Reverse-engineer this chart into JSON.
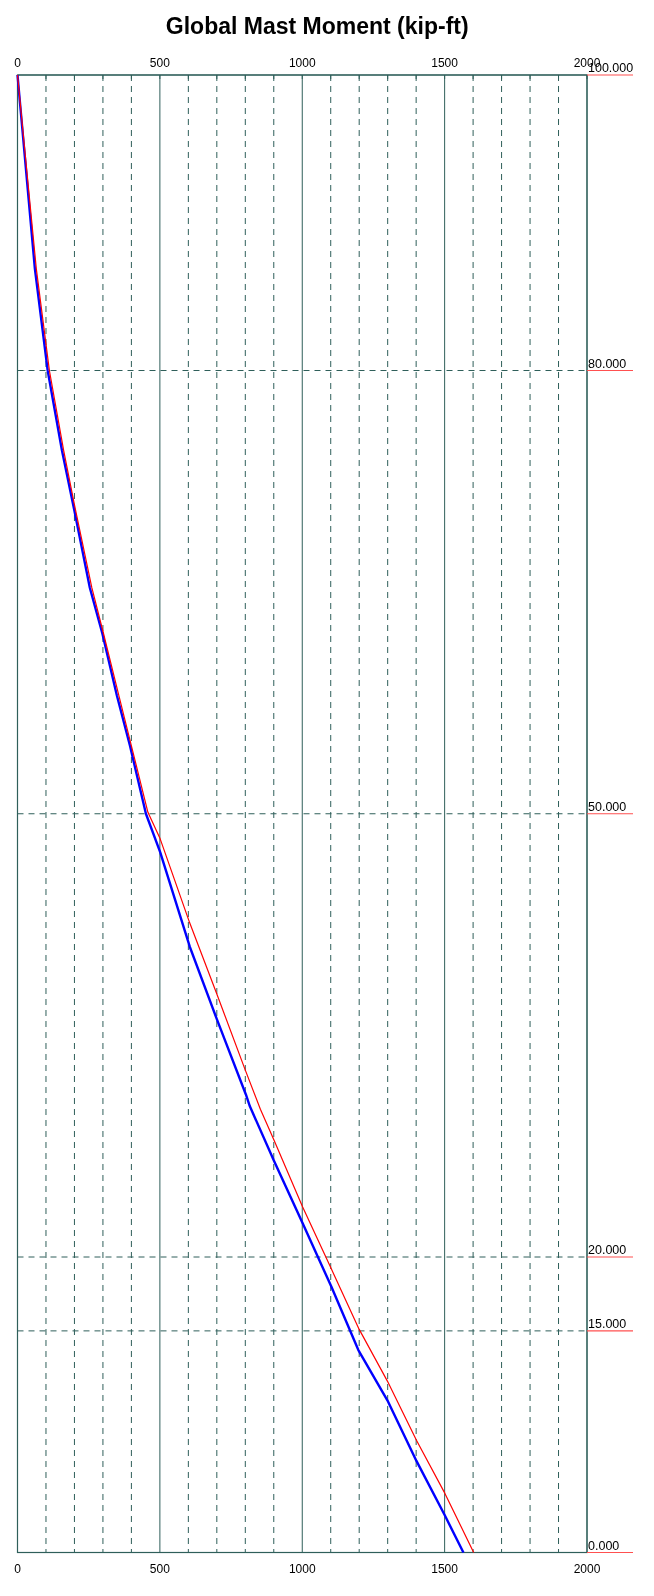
{
  "chart_data": {
    "type": "line",
    "title": "Global Mast Moment (kip-ft)",
    "series": [
      {
        "color": "#ff0000",
        "x": [
          0,
          66,
          112,
          162,
          199,
          261,
          302,
          356,
          400,
          458,
          501,
          605,
          700,
          799,
          853,
          901,
          1001,
          1102,
          1200,
          1299,
          1401,
          1501,
          1602
        ],
        "values": [
          100,
          86.9,
          80,
          74.6,
          71.0,
          65.3,
          62.2,
          58.0,
          54.6,
          50.1,
          48.3,
          42.6,
          37.8,
          32.7,
          30.0,
          27.9,
          23.4,
          19.2,
          15.1,
          11.6,
          7.6,
          4.0,
          0
        ]
      },
      {
        "color": "#0000ff",
        "x": [
          0,
          61,
          106,
          156,
          199,
          254,
          298,
          349,
          395,
          451,
          501,
          605,
          700,
          802,
          816,
          901,
          1001,
          1102,
          1197,
          1299,
          1401,
          1501,
          1566
        ],
        "values": [
          100,
          86.9,
          80,
          74.6,
          70.6,
          65.3,
          62.2,
          58.0,
          54.6,
          50.0,
          47.4,
          41.0,
          36.1,
          31.0,
          30.2,
          26.5,
          22.3,
          18.0,
          13.7,
          10.3,
          6.2,
          2.5,
          0
        ]
      }
    ],
    "xlim": [
      0,
      2000
    ],
    "xticks": [
      0,
      {
        "value": 100,
        "label": null
      },
      {
        "value": 200,
        "label": null
      },
      {
        "value": 300,
        "label": null
      },
      {
        "value": 400,
        "label": null
      },
      500,
      {
        "value": 600,
        "label": null
      },
      {
        "value": 700,
        "label": null
      },
      {
        "value": 800,
        "label": null
      },
      {
        "value": 900,
        "label": null
      },
      1000,
      {
        "value": 1100,
        "label": null
      },
      {
        "value": 1200,
        "label": null
      },
      {
        "value": 1300,
        "label": null
      },
      {
        "value": 1400,
        "label": null
      },
      1500,
      {
        "value": 1600,
        "label": null
      },
      {
        "value": 1700,
        "label": null
      },
      {
        "value": 1800,
        "label": null
      },
      {
        "value": 1900,
        "label": null
      },
      2000
    ],
    "x2lim": [
      0,
      2000
    ],
    "x2ticks": [
      0,
      {
        "value": 100,
        "label": null
      },
      {
        "value": 200,
        "label": null
      },
      {
        "value": 300,
        "label": null
      },
      {
        "value": 400,
        "label": null
      },
      500,
      {
        "value": 600,
        "label": null
      },
      {
        "value": 700,
        "label": null
      },
      {
        "value": 800,
        "label": null
      },
      {
        "value": 900,
        "label": null
      },
      1000,
      {
        "value": 1100,
        "label": null
      },
      {
        "value": 1200,
        "label": null
      },
      {
        "value": 1300,
        "label": null
      },
      {
        "value": 1400,
        "label": null
      },
      1500,
      {
        "value": 1600,
        "label": null
      },
      {
        "value": 1700,
        "label": null
      },
      {
        "value": 1800,
        "label": null
      },
      {
        "value": 1900,
        "label": null
      },
      2000
    ],
    "ylim": [
      0,
      100
    ],
    "yticks": [
      {
        "value": 0,
        "label": "0.000"
      },
      {
        "value": 15,
        "label": "15.000"
      },
      {
        "value": 20,
        "label": "20.000"
      },
      {
        "value": 50,
        "label": "50.000"
      },
      {
        "value": 80,
        "label": "80.000"
      },
      {
        "value": 100,
        "label": "100.000"
      }
    ],
    "grid": true
  }
}
